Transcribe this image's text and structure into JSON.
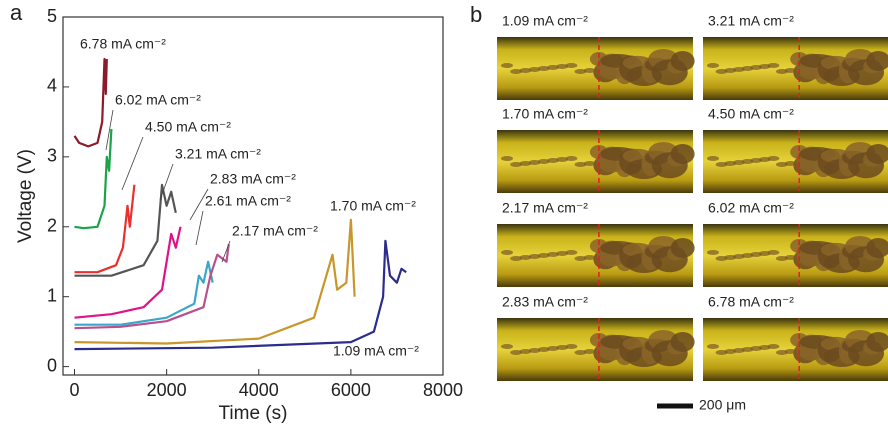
{
  "panel_a": {
    "label": "a"
  },
  "chart_data": {
    "type": "line",
    "xlabel": "Time  (s)",
    "ylabel": "Voltage  (V)",
    "xlim": [
      -250,
      8000
    ],
    "ylim": [
      -0.12,
      5
    ],
    "xticks": [
      0,
      2000,
      4000,
      6000,
      8000
    ],
    "yticks": [
      0,
      1,
      2,
      3,
      4,
      5
    ],
    "series": [
      {
        "name": "6.78 mA cm⁻²",
        "color": "#8b1a2b",
        "x": [
          0,
          100,
          300,
          500,
          600,
          650,
          680,
          700
        ],
        "values": [
          3.3,
          3.2,
          3.15,
          3.2,
          3.5,
          4.4,
          3.9,
          4.4
        ]
      },
      {
        "name": "6.02 mA cm⁻²",
        "color": "#1aa34a",
        "x": [
          0,
          200,
          500,
          650,
          700,
          750,
          800
        ],
        "values": [
          2.0,
          1.98,
          2.0,
          2.3,
          3.0,
          2.8,
          3.4
        ]
      },
      {
        "name": "4.50 mA cm⁻²",
        "color": "#e8312f",
        "x": [
          0,
          500,
          900,
          1050,
          1150,
          1200,
          1300
        ],
        "values": [
          1.35,
          1.35,
          1.45,
          1.7,
          2.3,
          2.0,
          2.6
        ]
      },
      {
        "name": "3.21 mA cm⁻²",
        "color": "#555555",
        "x": [
          0,
          800,
          1500,
          1800,
          1900,
          2000,
          2100,
          2200
        ],
        "values": [
          1.3,
          1.3,
          1.45,
          1.8,
          2.6,
          2.3,
          2.5,
          2.2
        ]
      },
      {
        "name": "2.83 mA cm⁻²",
        "color": "#e0128a",
        "x": [
          0,
          800,
          1500,
          1900,
          2100,
          2200,
          2300
        ],
        "values": [
          0.7,
          0.75,
          0.85,
          1.1,
          1.9,
          1.7,
          2.0
        ]
      },
      {
        "name": "2.61 mA cm⁻²",
        "color": "#3aa6c8",
        "x": [
          0,
          1000,
          2000,
          2600,
          2700,
          2800,
          2900,
          3000
        ],
        "values": [
          0.6,
          0.6,
          0.7,
          0.9,
          1.3,
          1.2,
          1.5,
          1.2
        ]
      },
      {
        "name": "2.17 mA cm⁻²",
        "color": "#b84f8f",
        "x": [
          0,
          1000,
          2000,
          2800,
          2950,
          3100,
          3300,
          3350
        ],
        "values": [
          0.55,
          0.57,
          0.65,
          0.85,
          1.3,
          1.6,
          1.5,
          1.75
        ]
      },
      {
        "name": "1.70 mA cm⁻²",
        "color": "#c8962a",
        "x": [
          0,
          2000,
          4000,
          5200,
          5600,
          5700,
          5900,
          6000,
          6080
        ],
        "values": [
          0.35,
          0.33,
          0.4,
          0.7,
          1.6,
          1.1,
          1.2,
          2.1,
          1.0
        ]
      },
      {
        "name": "1.09 mA cm⁻²",
        "color": "#2b2d8c",
        "x": [
          0,
          3000,
          6000,
          6500,
          6700,
          6750,
          6850,
          7000,
          7100,
          7200
        ],
        "values": [
          0.25,
          0.27,
          0.35,
          0.5,
          1.0,
          1.8,
          1.3,
          1.2,
          1.4,
          1.35
        ]
      }
    ]
  },
  "panel_b": {
    "label": "b",
    "frames": [
      "1.09 mA cm⁻²",
      "3.21 mA cm⁻²",
      "1.70 mA cm⁻²",
      "4.50 mA cm⁻²",
      "2.17 mA cm⁻²",
      "6.02 mA cm⁻²",
      "2.83 mA cm⁻²",
      "6.78 mA cm⁻²"
    ],
    "scale_bar": "200 μm"
  }
}
